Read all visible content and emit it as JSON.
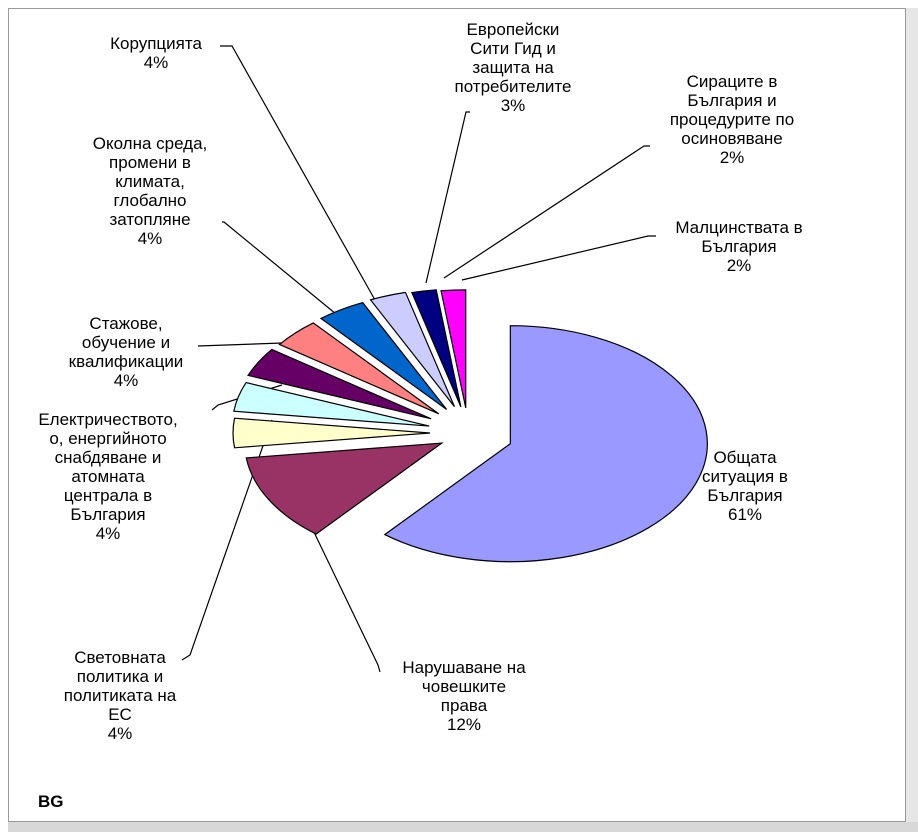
{
  "chart_data": {
    "type": "pie",
    "exploded": true,
    "slices": [
      {
        "label": [
          "Общата",
          "ситуация в",
          "България"
        ],
        "pct": "61%",
        "value": 61,
        "color": "#9999ff"
      },
      {
        "label": [
          "Нарушаване на",
          "човешките",
          "права"
        ],
        "pct": "12%",
        "value": 12,
        "color": "#993366"
      },
      {
        "label": [
          "Световната",
          "политика и",
          "политиката на",
          "ЕС"
        ],
        "pct": "4%",
        "value": 4,
        "color": "#ffffcc"
      },
      {
        "label": [
          "Електричеството,",
          "о, енергийното",
          "снабдяване и",
          "атомната",
          "централа в",
          "България"
        ],
        "pct": "4%",
        "value": 4,
        "color": "#ccffff"
      },
      {
        "label": [
          "Стажове,",
          "обучение и",
          "квалификации"
        ],
        "pct": "4%",
        "value": 4,
        "color": "#660066"
      },
      {
        "label": [
          "Околна среда,",
          "промени в",
          "климата,",
          "глобално",
          "затопляне"
        ],
        "pct": "4%",
        "value": 4,
        "color": "#ff8080"
      },
      {
        "label": [
          "Корупцията"
        ],
        "pct": "4%",
        "value": 4,
        "color": "#0066cc"
      },
      {
        "label": [
          "Европейски",
          "Сити Гид и",
          "защита на",
          "потребителите"
        ],
        "pct": "3%",
        "value": 3,
        "color": "#ccccff"
      },
      {
        "label": [
          "Сираците в",
          "България и",
          "процедурите по",
          "осиновяване"
        ],
        "pct": "2%",
        "value": 2,
        "color": "#000080"
      },
      {
        "label": [
          "Малцинствата в",
          "България"
        ],
        "pct": "2%",
        "value": 2,
        "color": "#ff00ff"
      }
    ]
  },
  "region_tag": "BG"
}
